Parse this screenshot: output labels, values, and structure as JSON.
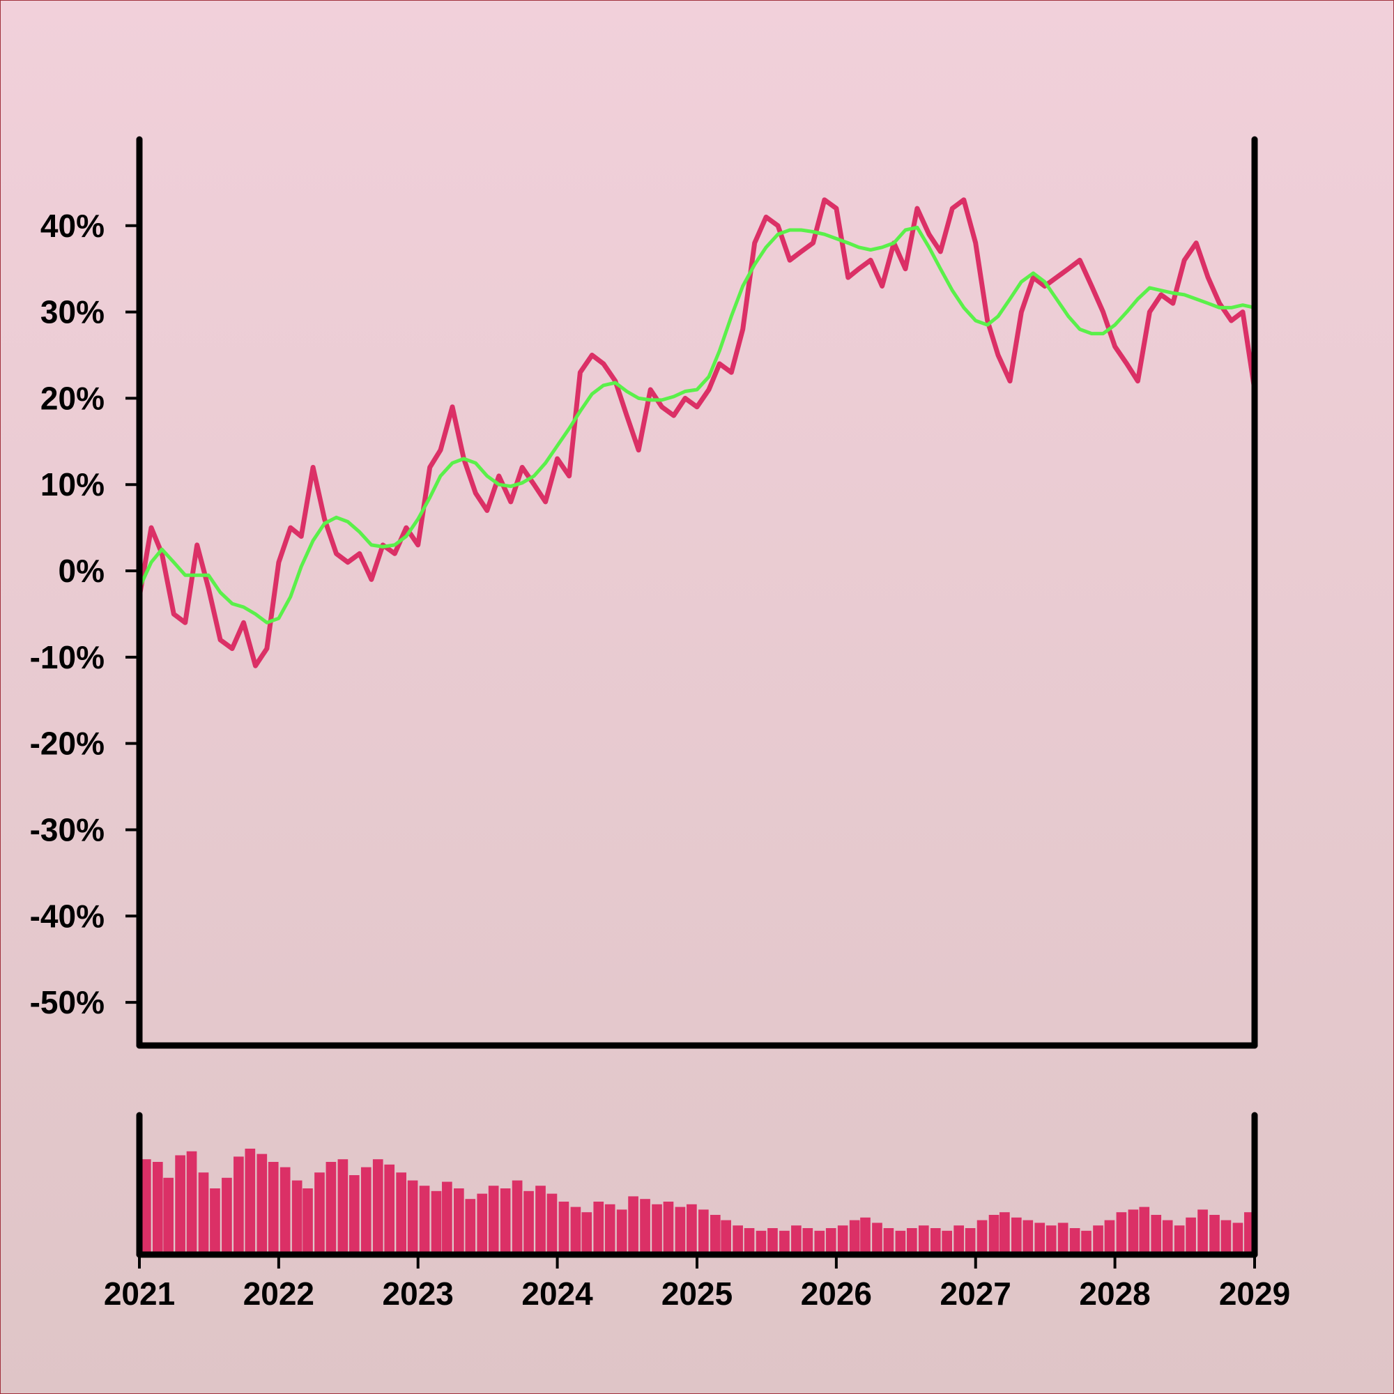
{
  "colors": {
    "price_line": "#db3066",
    "moving_average": "#5af04a",
    "volume_bars": "#db3066",
    "axes": "#000000"
  },
  "chart_data": [
    {
      "type": "line",
      "title": "",
      "xlabel": "",
      "ylabel": "",
      "xlim": [
        "2021-01-01",
        "2029-01-01"
      ],
      "ylim": [
        -55,
        50
      ],
      "grid": false,
      "legend": "none",
      "y_ticks": [
        -50,
        -40,
        -30,
        -20,
        -10,
        0,
        10,
        20,
        30,
        40
      ],
      "y_tick_labels": [
        "-50%",
        "-40%",
        "-30%",
        "-20%",
        "-10%",
        "0%",
        "10%",
        "20%",
        "30%",
        "40%"
      ],
      "series": [
        {
          "role": "price",
          "x": [
            "2021-01",
            "2021-02",
            "2021-03",
            "2021-04",
            "2021-05",
            "2021-06",
            "2021-07",
            "2021-08",
            "2021-09",
            "2021-10",
            "2021-11",
            "2021-12",
            "2022-01",
            "2022-02",
            "2022-03",
            "2022-04",
            "2022-05",
            "2022-06",
            "2022-07",
            "2022-08",
            "2022-09",
            "2022-10",
            "2022-11",
            "2022-12",
            "2023-01",
            "2023-02",
            "2023-03",
            "2023-04",
            "2023-05",
            "2023-06",
            "2023-07",
            "2023-08",
            "2023-09",
            "2023-10",
            "2023-11",
            "2023-12",
            "2024-01",
            "2024-02",
            "2024-03",
            "2024-04",
            "2024-05",
            "2024-06",
            "2024-07",
            "2024-08",
            "2024-09",
            "2024-10",
            "2024-11",
            "2024-12",
            "2025-01",
            "2025-02",
            "2025-03",
            "2025-04",
            "2025-05",
            "2025-06",
            "2025-07",
            "2025-08",
            "2025-09",
            "2025-10",
            "2025-11",
            "2025-12",
            "2026-01",
            "2026-02",
            "2026-03",
            "2026-04",
            "2026-05",
            "2026-06",
            "2026-07",
            "2026-08",
            "2026-09",
            "2026-10",
            "2026-11",
            "2026-12",
            "2027-01",
            "2027-02",
            "2027-03",
            "2027-04",
            "2027-05",
            "2027-06",
            "2027-07",
            "2027-08",
            "2027-09",
            "2027-10",
            "2027-11",
            "2027-12",
            "2028-01",
            "2028-02",
            "2028-03",
            "2028-04",
            "2028-05",
            "2028-06",
            "2028-07",
            "2028-08",
            "2028-09",
            "2028-10",
            "2028-11",
            "2028-12",
            "2029-01"
          ],
          "values": [
            -3,
            5,
            2,
            -5,
            -6,
            3,
            -2,
            -8,
            -9,
            -6,
            -11,
            -9,
            1,
            5,
            4,
            12,
            6,
            2,
            1,
            2,
            -1,
            3,
            2,
            5,
            3,
            12,
            14,
            19,
            13,
            9,
            7,
            11,
            8,
            12,
            10,
            8,
            13,
            11,
            23,
            25,
            24,
            22,
            18,
            14,
            21,
            19,
            18,
            20,
            19,
            21,
            24,
            23,
            28,
            38,
            41,
            40,
            36,
            37,
            38,
            43,
            42,
            34,
            35,
            36,
            33,
            38,
            35,
            42,
            39,
            37,
            42,
            43,
            38,
            29,
            25,
            22,
            30,
            34,
            33,
            34,
            35,
            36,
            33,
            30,
            26,
            24,
            22,
            30,
            32,
            31,
            36,
            38,
            34,
            31,
            29,
            30,
            21
          ]
        },
        {
          "role": "moving-average",
          "x": [
            "2021-01",
            "2021-02",
            "2021-03",
            "2021-04",
            "2021-05",
            "2021-06",
            "2021-07",
            "2021-08",
            "2021-09",
            "2021-10",
            "2021-11",
            "2021-12",
            "2022-01",
            "2022-02",
            "2022-03",
            "2022-04",
            "2022-05",
            "2022-06",
            "2022-07",
            "2022-08",
            "2022-09",
            "2022-10",
            "2022-11",
            "2022-12",
            "2023-01",
            "2023-02",
            "2023-03",
            "2023-04",
            "2023-05",
            "2023-06",
            "2023-07",
            "2023-08",
            "2023-09",
            "2023-10",
            "2023-11",
            "2023-12",
            "2024-01",
            "2024-02",
            "2024-03",
            "2024-04",
            "2024-05",
            "2024-06",
            "2024-07",
            "2024-08",
            "2024-09",
            "2024-10",
            "2024-11",
            "2024-12",
            "2025-01",
            "2025-02",
            "2025-03",
            "2025-04",
            "2025-05",
            "2025-06",
            "2025-07",
            "2025-08",
            "2025-09",
            "2025-10",
            "2025-11",
            "2025-12",
            "2026-01",
            "2026-02",
            "2026-03",
            "2026-04",
            "2026-05",
            "2026-06",
            "2026-07",
            "2026-08",
            "2026-09",
            "2026-10",
            "2026-11",
            "2026-12",
            "2027-01",
            "2027-02",
            "2027-03",
            "2027-04",
            "2027-05",
            "2027-06",
            "2027-07",
            "2027-08",
            "2027-09",
            "2027-10",
            "2027-11",
            "2027-12",
            "2028-01",
            "2028-02",
            "2028-03",
            "2028-04",
            "2028-05",
            "2028-06",
            "2028-07",
            "2028-08",
            "2028-09",
            "2028-10",
            "2028-11",
            "2028-12",
            "2029-01"
          ],
          "values": [
            -2,
            1,
            2.5,
            1,
            -0.5,
            -0.5,
            -0.5,
            -2.5,
            -3.8,
            -4.2,
            -5,
            -6,
            -5.5,
            -3,
            0.5,
            3.5,
            5.5,
            6.2,
            5.7,
            4.5,
            3,
            2.8,
            3,
            4,
            6,
            8.5,
            11,
            12.5,
            13,
            12.5,
            11,
            10,
            9.8,
            10.2,
            11,
            12.5,
            14.5,
            16.5,
            18.5,
            20.5,
            21.5,
            21.8,
            20.8,
            20,
            19.8,
            19.8,
            20.2,
            20.8,
            21,
            22.5,
            25.5,
            29.5,
            33,
            35.5,
            37.5,
            39,
            39.5,
            39.5,
            39.3,
            39,
            38.5,
            38,
            37.5,
            37.2,
            37.5,
            38,
            39.5,
            39.8,
            37.5,
            35,
            32.5,
            30.5,
            29,
            28.5,
            29.5,
            31.5,
            33.5,
            34.5,
            33.5,
            31.5,
            29.5,
            28,
            27.5,
            27.5,
            28.5,
            30,
            31.5,
            32.8,
            32.5,
            32.2,
            32,
            31.5,
            31,
            30.5,
            30.5,
            30.8,
            30.5
          ]
        }
      ]
    },
    {
      "type": "bar",
      "role": "volume",
      "title": "",
      "xlabel": "",
      "ylabel": "",
      "xlim": [
        "2021-01-01",
        "2029-01-01"
      ],
      "ylim": [
        0,
        1
      ],
      "grid": false,
      "x_ticks": [
        "2021-01-01",
        "2022-01-01",
        "2023-01-01",
        "2024-01-01",
        "2025-01-01",
        "2026-01-01",
        "2027-01-01",
        "2028-01-01",
        "2029-01-01"
      ],
      "x_tick_labels": [
        "2021",
        "2022",
        "2023",
        "2024",
        "2025",
        "2026",
        "2027",
        "2028",
        "2029"
      ],
      "x": [
        "2021-01",
        "2021-02",
        "2021-03",
        "2021-04",
        "2021-05",
        "2021-06",
        "2021-07",
        "2021-08",
        "2021-09",
        "2021-10",
        "2021-11",
        "2021-12",
        "2022-01",
        "2022-02",
        "2022-03",
        "2022-04",
        "2022-05",
        "2022-06",
        "2022-07",
        "2022-08",
        "2022-09",
        "2022-10",
        "2022-11",
        "2022-12",
        "2023-01",
        "2023-02",
        "2023-03",
        "2023-04",
        "2023-05",
        "2023-06",
        "2023-07",
        "2023-08",
        "2023-09",
        "2023-10",
        "2023-11",
        "2023-12",
        "2024-01",
        "2024-02",
        "2024-03",
        "2024-04",
        "2024-05",
        "2024-06",
        "2024-07",
        "2024-08",
        "2024-09",
        "2024-10",
        "2024-11",
        "2024-12",
        "2025-01",
        "2025-02",
        "2025-03",
        "2025-04",
        "2025-05",
        "2025-06",
        "2025-07",
        "2025-08",
        "2025-09",
        "2025-10",
        "2025-11",
        "2025-12",
        "2026-01",
        "2026-02",
        "2026-03",
        "2026-04",
        "2026-05",
        "2026-06",
        "2026-07",
        "2026-08",
        "2026-09",
        "2026-10",
        "2026-11",
        "2026-12",
        "2027-01",
        "2027-02",
        "2027-03",
        "2027-04",
        "2027-05",
        "2027-06",
        "2027-07",
        "2027-08",
        "2027-09",
        "2027-10",
        "2027-11",
        "2027-12",
        "2028-01",
        "2028-02",
        "2028-03",
        "2028-04",
        "2028-05",
        "2028-06",
        "2028-07",
        "2028-08",
        "2028-09",
        "2028-10",
        "2028-11",
        "2028-12"
      ],
      "values": [
        0.72,
        0.7,
        0.58,
        0.75,
        0.78,
        0.62,
        0.5,
        0.58,
        0.74,
        0.8,
        0.76,
        0.7,
        0.66,
        0.56,
        0.5,
        0.62,
        0.7,
        0.72,
        0.6,
        0.66,
        0.72,
        0.68,
        0.62,
        0.56,
        0.52,
        0.48,
        0.55,
        0.5,
        0.42,
        0.46,
        0.52,
        0.5,
        0.56,
        0.48,
        0.52,
        0.46,
        0.4,
        0.36,
        0.32,
        0.4,
        0.38,
        0.34,
        0.44,
        0.42,
        0.38,
        0.4,
        0.36,
        0.38,
        0.34,
        0.3,
        0.26,
        0.22,
        0.2,
        0.18,
        0.2,
        0.18,
        0.22,
        0.2,
        0.18,
        0.2,
        0.22,
        0.26,
        0.28,
        0.24,
        0.2,
        0.18,
        0.2,
        0.22,
        0.2,
        0.18,
        0.22,
        0.2,
        0.26,
        0.3,
        0.32,
        0.28,
        0.26,
        0.24,
        0.22,
        0.24,
        0.2,
        0.18,
        0.22,
        0.26,
        0.32,
        0.34,
        0.36,
        0.3,
        0.26,
        0.22,
        0.28,
        0.34,
        0.3,
        0.26,
        0.24,
        0.32
      ]
    }
  ]
}
